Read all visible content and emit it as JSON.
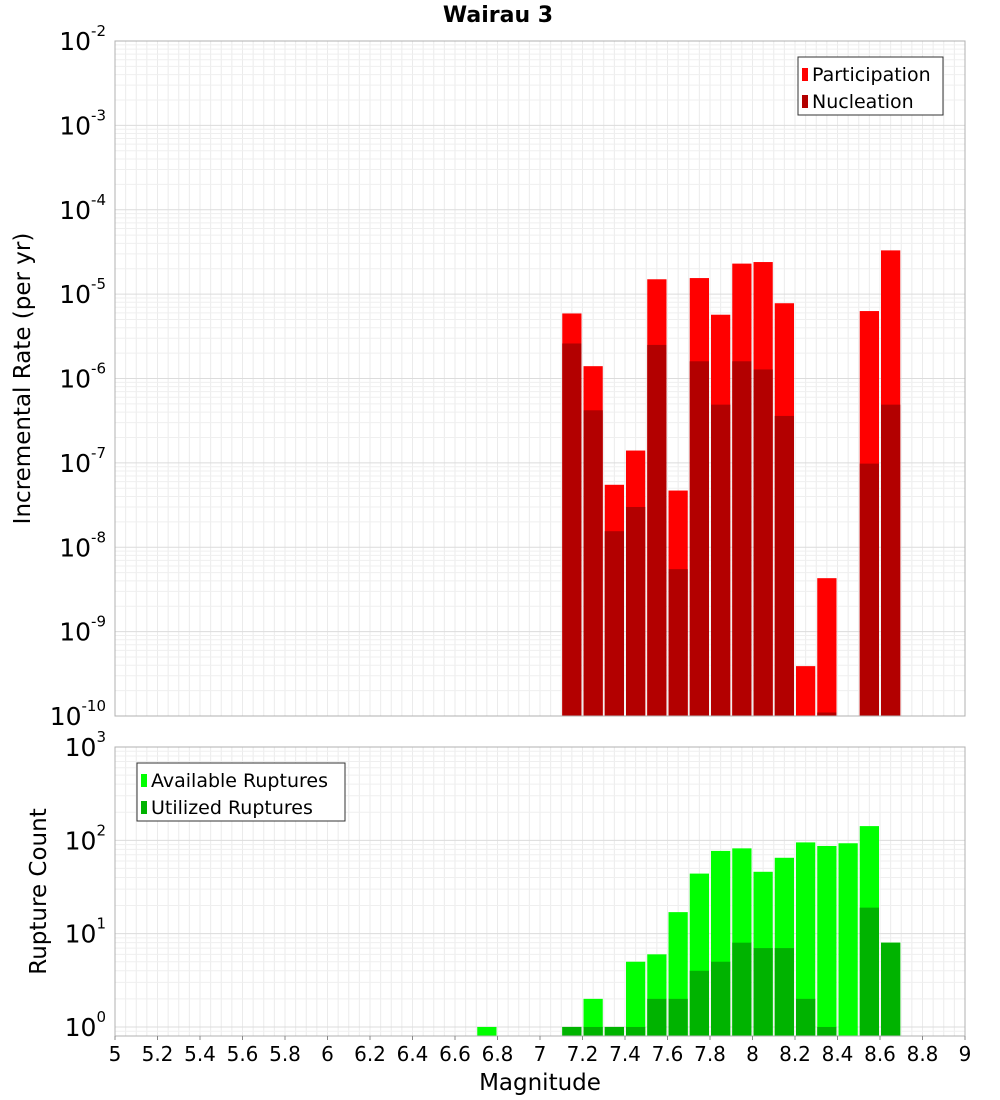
{
  "chart_data": {
    "type": "bar",
    "title": "Wairau 3",
    "xlabel": "Magnitude",
    "xlim": [
      5,
      9
    ],
    "xticks": [
      "5",
      "5.2",
      "5.4",
      "5.6",
      "5.8",
      "6",
      "6.2",
      "6.4",
      "6.6",
      "6.8",
      "7",
      "7.2",
      "7.4",
      "7.6",
      "7.8",
      "8",
      "8.2",
      "8.4",
      "8.6",
      "8.8",
      "9"
    ],
    "bin_width": 0.1,
    "grid": true,
    "panels": [
      {
        "id": "rate",
        "ylabel": "Incremental Rate (per yr)",
        "yscale": "log",
        "ylim": [
          1e-10,
          0.01
        ],
        "yticks": [
          {
            "base": "10",
            "exp": "-2",
            "value": 0.01
          },
          {
            "base": "10",
            "exp": "-3",
            "value": 0.001
          },
          {
            "base": "10",
            "exp": "-4",
            "value": 0.0001
          },
          {
            "base": "10",
            "exp": "-5",
            "value": 1e-05
          },
          {
            "base": "10",
            "exp": "-6",
            "value": 1e-06
          },
          {
            "base": "10",
            "exp": "-7",
            "value": 1e-07
          },
          {
            "base": "10",
            "exp": "-8",
            "value": 1e-08
          },
          {
            "base": "10",
            "exp": "-9",
            "value": 1e-09
          },
          {
            "base": "10",
            "exp": "-10",
            "value": 1e-10
          }
        ],
        "legend_position": "top-right",
        "series": [
          {
            "name": "Participation",
            "color": "#ff0000",
            "x": [
              7.15,
              7.25,
              7.35,
              7.45,
              7.55,
              7.65,
              7.75,
              7.85,
              7.95,
              8.05,
              8.15,
              8.25,
              8.35,
              8.55,
              8.65
            ],
            "values": [
              5.9e-06,
              1.4e-06,
              5.5e-08,
              1.4e-07,
              1.5e-05,
              4.7e-08,
              1.55e-05,
              5.7e-06,
              2.3e-05,
              2.4e-05,
              7.8e-06,
              3.9e-10,
              4.3e-09,
              6.3e-06,
              3.3e-05
            ]
          },
          {
            "name": "Nucleation",
            "color": "#b30000",
            "x": [
              7.15,
              7.25,
              7.35,
              7.45,
              7.55,
              7.65,
              7.75,
              7.85,
              7.95,
              8.05,
              8.15,
              8.35,
              8.55,
              8.65
            ],
            "values": [
              2.6e-06,
              4.2e-07,
              1.55e-08,
              3e-08,
              2.5e-06,
              5.5e-09,
              1.6e-06,
              4.9e-07,
              1.6e-06,
              1.28e-06,
              3.6e-07,
              1.1e-10,
              9.8e-08,
              4.9e-07
            ]
          }
        ]
      },
      {
        "id": "count",
        "ylabel": "Rupture Count",
        "yscale": "log",
        "ylim": [
          0.8,
          1000
        ],
        "yticks": [
          {
            "base": "10",
            "exp": "3",
            "value": 1000
          },
          {
            "base": "10",
            "exp": "2",
            "value": 100
          },
          {
            "base": "10",
            "exp": "1",
            "value": 10
          },
          {
            "base": "10",
            "exp": "0",
            "value": 1
          }
        ],
        "legend_position": "top-left",
        "series": [
          {
            "name": "Available Ruptures",
            "color": "#00ff00",
            "x": [
              6.75,
              7.15,
              7.25,
              7.35,
              7.45,
              7.55,
              7.65,
              7.75,
              7.85,
              7.95,
              8.05,
              8.15,
              8.25,
              8.35,
              8.45,
              8.55,
              8.65
            ],
            "values": [
              1,
              1,
              2,
              1,
              5,
              6,
              17,
              44,
              77,
              82,
              46,
              65,
              95,
              87,
              93,
              142,
              8
            ]
          },
          {
            "name": "Utilized Ruptures",
            "color": "#00b300",
            "x": [
              7.15,
              7.25,
              7.35,
              7.45,
              7.55,
              7.65,
              7.75,
              7.85,
              7.95,
              8.05,
              8.15,
              8.25,
              8.35,
              8.55,
              8.65
            ],
            "values": [
              1,
              1,
              1,
              1,
              2,
              2,
              4,
              5,
              8,
              7,
              7,
              2,
              1,
              19,
              8
            ]
          }
        ]
      }
    ]
  }
}
